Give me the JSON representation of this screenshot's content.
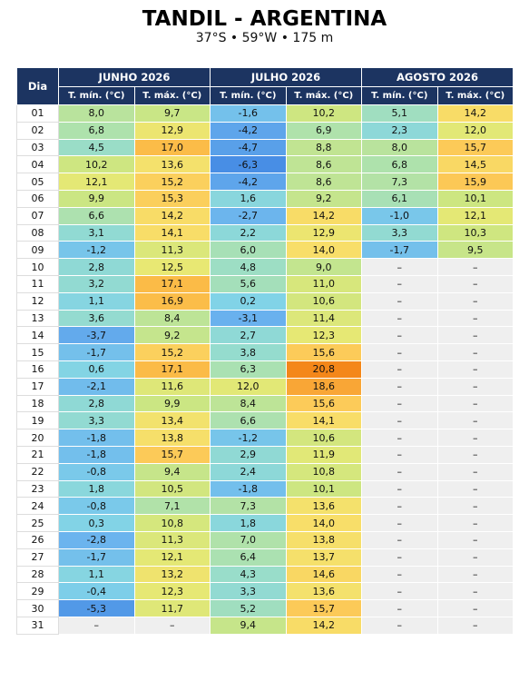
{
  "header": {
    "title": "TANDIL - ARGENTINA",
    "subtitle": "37°S • 59°W • 175 m"
  },
  "table": {
    "corner": "Dia",
    "months": [
      "JUNHO 2026",
      "JULHO 2026",
      "AGOSTO 2026"
    ],
    "subheaders": [
      "T. mín. (°C)",
      "T. máx. (°C)",
      "T. mín. (°C)",
      "T. máx. (°C)",
      "T. mín. (°C)",
      "T. máx. (°C)"
    ],
    "rows": [
      [
        "01",
        "8,0",
        "9,7",
        "-1,6",
        "10,2",
        "5,1",
        "14,2"
      ],
      [
        "02",
        "6,8",
        "12,9",
        "-4,2",
        "6,9",
        "2,3",
        "12,0"
      ],
      [
        "03",
        "4,5",
        "17,0",
        "-4,7",
        "8,8",
        "8,0",
        "15,7"
      ],
      [
        "04",
        "10,2",
        "13,6",
        "-6,3",
        "8,6",
        "6,8",
        "14,5"
      ],
      [
        "05",
        "12,1",
        "15,2",
        "-4,2",
        "8,6",
        "7,3",
        "15,9"
      ],
      [
        "06",
        "9,9",
        "15,3",
        "1,6",
        "9,2",
        "6,1",
        "10,1"
      ],
      [
        "07",
        "6,6",
        "14,2",
        "-2,7",
        "14,2",
        "-1,0",
        "12,1"
      ],
      [
        "08",
        "3,1",
        "14,1",
        "2,2",
        "12,9",
        "3,3",
        "10,3"
      ],
      [
        "09",
        "-1,2",
        "11,3",
        "6,0",
        "14,0",
        "-1,7",
        "9,5"
      ],
      [
        "10",
        "2,8",
        "12,5",
        "4,8",
        "9,0",
        "–",
        "–"
      ],
      [
        "11",
        "3,2",
        "17,1",
        "5,6",
        "11,0",
        "–",
        "–"
      ],
      [
        "12",
        "1,1",
        "16,9",
        "0,2",
        "10,6",
        "–",
        "–"
      ],
      [
        "13",
        "3,6",
        "8,4",
        "-3,1",
        "11,4",
        "–",
        "–"
      ],
      [
        "14",
        "-3,7",
        "9,2",
        "2,7",
        "12,3",
        "–",
        "–"
      ],
      [
        "15",
        "-1,7",
        "15,2",
        "3,8",
        "15,6",
        "–",
        "–"
      ],
      [
        "16",
        "0,6",
        "17,1",
        "6,3",
        "20,8",
        "–",
        "–"
      ],
      [
        "17",
        "-2,1",
        "11,6",
        "12,0",
        "18,6",
        "–",
        "–"
      ],
      [
        "18",
        "2,8",
        "9,9",
        "8,4",
        "15,6",
        "–",
        "–"
      ],
      [
        "19",
        "3,3",
        "13,4",
        "6,6",
        "14,1",
        "–",
        "–"
      ],
      [
        "20",
        "-1,8",
        "13,8",
        "-1,2",
        "10,6",
        "–",
        "–"
      ],
      [
        "21",
        "-1,8",
        "15,7",
        "2,9",
        "11,9",
        "–",
        "–"
      ],
      [
        "22",
        "-0,8",
        "9,4",
        "2,4",
        "10,8",
        "–",
        "–"
      ],
      [
        "23",
        "1,8",
        "10,5",
        "-1,8",
        "10,1",
        "–",
        "–"
      ],
      [
        "24",
        "-0,8",
        "7,1",
        "7,3",
        "13,6",
        "–",
        "–"
      ],
      [
        "25",
        "0,3",
        "10,8",
        "1,8",
        "14,0",
        "–",
        "–"
      ],
      [
        "26",
        "-2,8",
        "11,3",
        "7,0",
        "13,8",
        "–",
        "–"
      ],
      [
        "27",
        "-1,7",
        "12,1",
        "6,4",
        "13,7",
        "–",
        "–"
      ],
      [
        "28",
        "1,1",
        "13,2",
        "4,3",
        "14,6",
        "–",
        "–"
      ],
      [
        "29",
        "-0,4",
        "12,3",
        "3,3",
        "13,6",
        "–",
        "–"
      ],
      [
        "30",
        "-5,3",
        "11,7",
        "5,2",
        "15,7",
        "–",
        "–"
      ],
      [
        "31",
        "–",
        "–",
        "9,4",
        "14,2",
        "–",
        "–"
      ]
    ]
  }
}
